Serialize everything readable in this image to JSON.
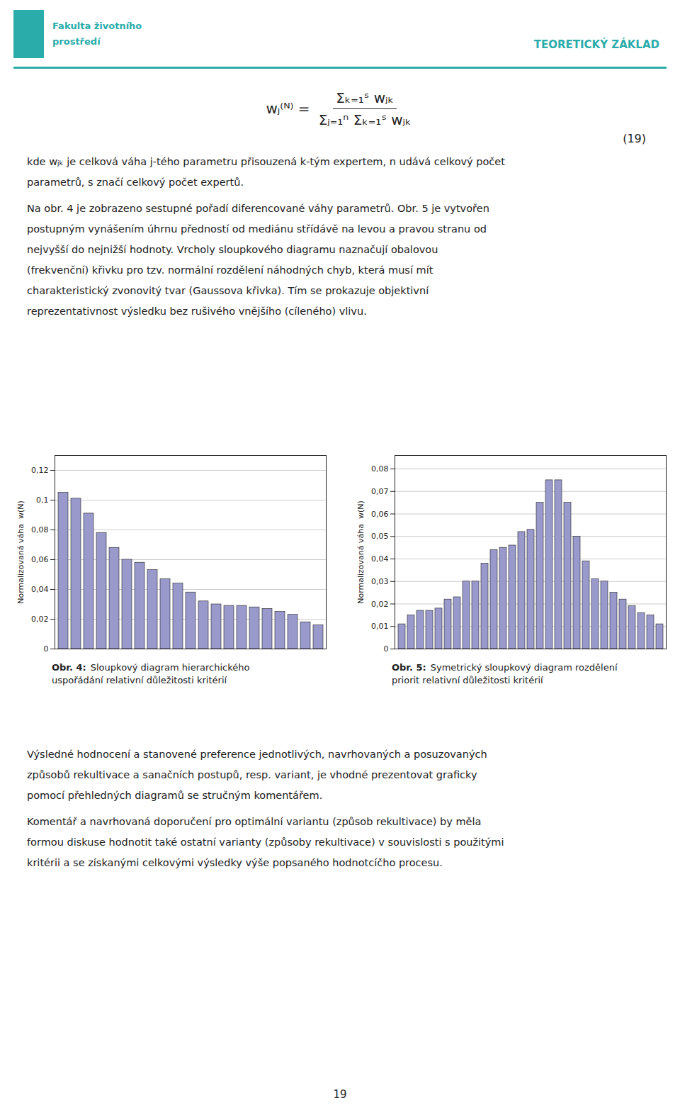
{
  "page_text": {
    "logo": [
      "Fakulta životního",
      "prostředí"
    ],
    "header": "TEORETICKÝ ZÁKLAD",
    "formula": {
      "lhs": "wⱼ⁽ᴺ⁾ =",
      "numerator": "Σₖ₌₁ˢ wⱼₖ",
      "denominator": "Σⱼ₌₁ⁿ Σₖ₌₁ˢ wⱼₖ"
    },
    "equation_number": "(19)",
    "paragraphs_before": [
      "kde  wⱼₖ  je celková váha j-tého parametru přisouzená k-tým expertem, n udává celkový počet\nparametrů, s značí celkový počet expertů.",
      "Na obr. 4 je zobrazeno sestupné pořadí diferencované váhy parametrů. Obr. 5 je vytvořen\npostupným vynášením úhrnu předností od mediánu střídávě na levou a pravou stranu od\nnejvyšší do nejnižší hodnoty. Vrcholy sloupkového diagramu naznačují obalovou\n(frekvenční) křivku pro tzv. normální rozdělení náhodných chyb, která musí mít\ncharakteristický zvonovitý tvar (Gaussova křivka). Tím se prokazuje objektivní\nreprezentativnost výsledku bez rušivého vnějšího (cíleného) vlivu."
    ],
    "paragraphs_after": [
      "Výsledné hodnocení a stanovené preference jednotlivých, navrhovaných a posuzovaných\nzpůsobů rekultivace a sanačních postupů, resp. variant, je vhodné prezentovat graficky\npomocí přehledných diagramů se stručným komentářem.",
      "Komentář a navrhovaná doporučení pro optimální variantu (způsob rekultivace) by měla\nformou diskuse hodnotit také ostatní varianty (způsoby rekultivace) v souvislosti s použitými\nkritérii a se získanými celkovými výsledky výše popsaného hodnotcíčho procesu."
    ],
    "page_number": "19"
  },
  "chart_data": [
    {
      "type": "bar",
      "caption": {
        "label": "Obr. 4:",
        "text": "Sloupkový diagram hierarchického\nuspořádání relativní důležitosti kritérií"
      },
      "y_label": "Normalizovaná váha  w(N)",
      "categories": [
        null,
        null,
        null,
        null,
        null,
        null,
        null,
        null,
        null,
        null,
        null,
        null,
        null,
        null,
        null,
        null,
        null,
        null,
        null,
        null,
        null
      ],
      "values": [
        0.105,
        0.101,
        0.091,
        0.078,
        0.068,
        0.06,
        0.058,
        0.053,
        0.047,
        0.044,
        0.038,
        0.032,
        0.03,
        0.029,
        0.029,
        0.028,
        0.027,
        0.025,
        0.023,
        0.018,
        0.016
      ],
      "color": "#9999cc",
      "ylim": [
        0,
        0.13
      ],
      "yticks": [
        0,
        {
          "value": 0.02,
          "label": "0,02"
        },
        {
          "value": 0.04,
          "label": "0,04"
        },
        {
          "value": 0.06,
          "label": "0,06"
        },
        {
          "value": 0.08,
          "label": "0,08"
        },
        {
          "value": 0.1,
          "label": "0,1"
        },
        {
          "value": 0.12,
          "label": "0,12"
        }
      ],
      "grid": true,
      "tick_labels": "y"
    },
    {
      "type": "bar",
      "caption": {
        "label": "Obr. 5:",
        "text": "Symetrický sloupkový diagram rozdělení\npriorit relativní důležitosti kritérií"
      },
      "y_label": "Normalizovaná váha  w(N)",
      "categories": [
        null,
        null,
        null,
        null,
        null,
        null,
        null,
        null,
        null,
        null,
        null,
        null,
        null,
        null,
        null,
        null,
        null,
        null,
        null,
        null,
        null,
        null,
        null,
        null,
        null,
        null,
        null,
        null,
        null
      ],
      "values": [
        0.011,
        0.015,
        0.017,
        0.017,
        0.018,
        0.022,
        0.023,
        0.03,
        0.03,
        0.038,
        0.044,
        0.045,
        0.046,
        0.052,
        0.053,
        0.065,
        0.075,
        0.075,
        0.065,
        0.05,
        0.039,
        0.031,
        0.03,
        0.025,
        0.022,
        0.019,
        0.016,
        0.015,
        0.011
      ],
      "color": "#9999cc",
      "ylim": [
        0,
        0.086
      ],
      "yticks": [
        0,
        {
          "value": 0.01,
          "label": "0,01"
        },
        {
          "value": 0.02,
          "label": "0,02"
        },
        {
          "value": 0.03,
          "label": "0,03"
        },
        {
          "value": 0.04,
          "label": "0,04"
        },
        {
          "value": 0.05,
          "label": "0,05"
        },
        {
          "value": 0.06,
          "label": "0,06"
        },
        {
          "value": 0.07,
          "label": "0,07"
        },
        {
          "value": 0.08,
          "label": "0,08"
        }
      ],
      "grid": true,
      "tick_labels": "y"
    }
  ]
}
